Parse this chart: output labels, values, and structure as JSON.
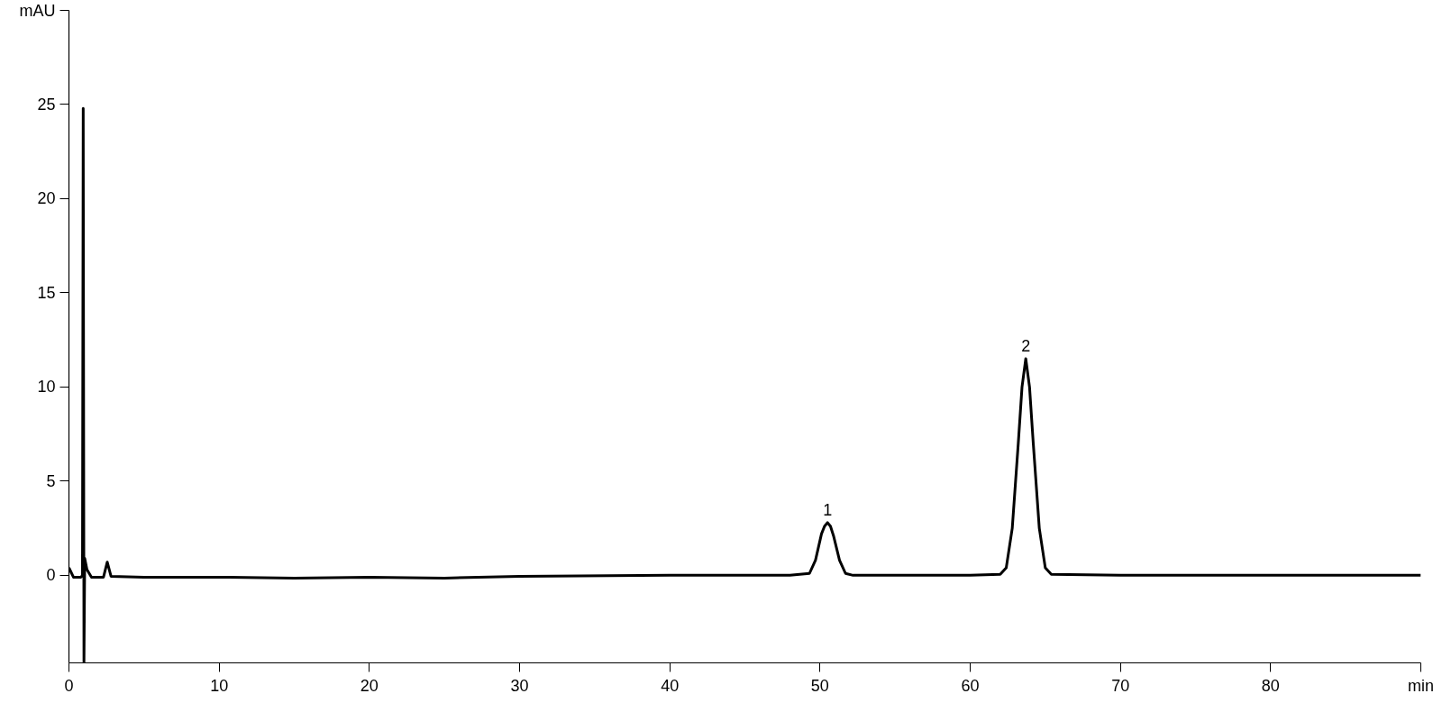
{
  "chart_data": {
    "type": "line",
    "x": [
      0,
      0.3,
      0.8,
      0.9,
      0.95,
      1.0,
      1.05,
      1.2,
      1.5,
      2.3,
      2.55,
      2.8,
      5,
      10,
      15,
      20,
      25,
      30,
      40,
      45,
      48,
      49.3,
      49.7,
      50.1,
      50.3,
      50.5,
      50.7,
      50.9,
      51.3,
      51.7,
      52.2,
      55,
      60,
      62,
      62.4,
      62.8,
      63.2,
      63.45,
      63.7,
      63.95,
      64.2,
      64.6,
      65.0,
      65.4,
      70,
      80,
      90
    ],
    "series": [
      {
        "color": "#000000",
        "values": [
          0.4,
          -0.1,
          -0.1,
          0.0,
          24.8,
          -4.6,
          0.9,
          0.3,
          -0.1,
          -0.1,
          0.7,
          -0.05,
          -0.1,
          -0.1,
          -0.15,
          -0.1,
          -0.15,
          -0.05,
          0.0,
          0.0,
          0.0,
          0.1,
          0.8,
          2.2,
          2.6,
          2.8,
          2.6,
          2.1,
          0.8,
          0.1,
          0.0,
          0.0,
          0.0,
          0.05,
          0.4,
          2.5,
          7,
          10,
          11.5,
          10,
          7,
          2.5,
          0.4,
          0.05,
          0.0,
          0.0,
          0.0
        ]
      }
    ],
    "xlim": [
      0,
      90
    ],
    "ylim": [
      -4.65,
      30
    ],
    "xticks": [
      0,
      10,
      20,
      30,
      40,
      50,
      60,
      70,
      80,
      {
        "value": 90,
        "label": "min"
      }
    ],
    "yticks": [
      0,
      5,
      10,
      15,
      20,
      25,
      {
        "value": 30,
        "label": "mAU"
      }
    ],
    "annotations": [
      {
        "text": "1",
        "x": 50.5,
        "y": 2.8
      },
      {
        "text": "2",
        "x": 63.7,
        "y": 11.5
      }
    ],
    "grid": false,
    "line_style": "solid"
  }
}
